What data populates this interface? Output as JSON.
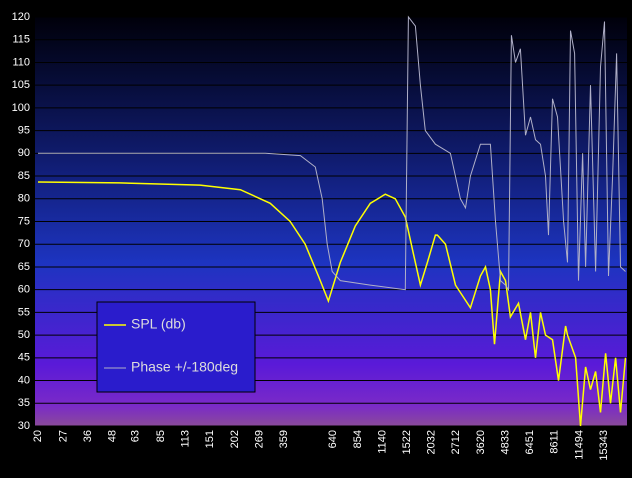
{
  "chart_data": {
    "type": "line",
    "xscale": "log",
    "xlim": [
      19.3,
      20100
    ],
    "xticks": [
      20,
      27,
      36,
      48,
      63,
      85,
      113,
      151,
      202,
      269,
      359,
      640,
      854,
      1140,
      1522,
      2032,
      2712,
      3620,
      4833,
      6451,
      8611,
      11494,
      15343
    ],
    "ylim": [
      30,
      120
    ],
    "yticks": [
      30,
      35,
      40,
      45,
      50,
      55,
      60,
      65,
      70,
      75,
      80,
      85,
      90,
      95,
      100,
      105,
      110,
      115,
      120
    ],
    "grid": true,
    "legend": "lower-left",
    "series": [
      {
        "name": "SPL (db)",
        "color": "#ffff00",
        "x": [
          20,
          52,
          134,
          215,
          305,
          386,
          460,
          537,
          604,
          695,
          828,
          988,
          1178,
          1325,
          1490,
          1637,
          1778,
          1932,
          2122,
          2172,
          2388,
          2684,
          3200,
          3598,
          3820,
          4045,
          4246,
          4553,
          4830,
          5117,
          5625,
          6108,
          6474,
          6870,
          7280,
          7725,
          8380,
          9000,
          9772,
          10000,
          10990,
          11640,
          12360,
          13100,
          13900,
          14730,
          15640,
          16560,
          17580,
          18620,
          19760
        ],
        "values": [
          83.7,
          83.5,
          83,
          82,
          79,
          75,
          70,
          63,
          57.5,
          66,
          74,
          79,
          81,
          80,
          76,
          68,
          61,
          66,
          72,
          72,
          70,
          61,
          56,
          63,
          65,
          60,
          48,
          64,
          62,
          54,
          57,
          49,
          55,
          45,
          55,
          50,
          49,
          40,
          52,
          50,
          45,
          30,
          43,
          38,
          42,
          33,
          46,
          35,
          45,
          33,
          45
        ]
      },
      {
        "name": "Phase +/-180deg",
        "color": "#b0b0c8",
        "x": [
          20,
          288,
          435,
          518,
          562,
          596,
          632,
          695,
          988,
          1490,
          1545,
          1677,
          1778,
          1884,
          2122,
          2530,
          2845,
          3020,
          3200,
          3598,
          4045,
          4296,
          4553,
          4830,
          5000,
          5176,
          5433,
          5755,
          6108,
          6474,
          6870,
          7280,
          7725,
          8000,
          8380,
          8892,
          9550,
          10000,
          10355,
          10866,
          11380,
          11940,
          12360,
          13100,
          13900,
          14730,
          15440,
          16180,
          16980,
          17780,
          18620,
          19760
        ],
        "values": [
          90,
          90,
          89.5,
          87,
          80,
          70,
          64,
          62,
          61,
          60,
          120,
          118,
          105,
          95,
          92,
          90,
          80,
          78,
          85,
          92,
          92,
          75,
          62,
          61,
          60,
          116,
          110,
          113,
          94,
          98,
          93,
          92,
          85,
          72,
          102,
          98,
          75,
          66,
          117,
          112,
          62,
          90,
          65,
          105,
          64,
          109,
          119,
          63,
          85,
          112,
          65,
          64
        ]
      }
    ]
  }
}
